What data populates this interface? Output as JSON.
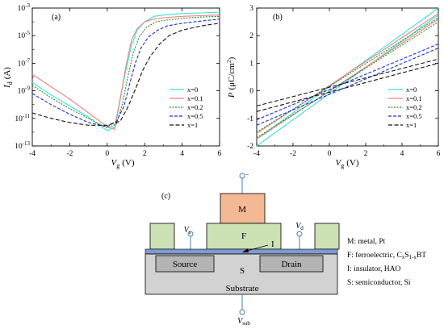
{
  "colors": {
    "x0": "#33e3e3",
    "x01": "#f08080",
    "x02": "#2e8b2e",
    "x05": "#1c2fd8",
    "x1": "#111111",
    "metal": "#f4b894",
    "ferro": "#cce2b4",
    "insulator": "#7d9ad2",
    "sd": "#b4b4b4",
    "substrate": "#d2d2d2"
  },
  "chart_data": [
    {
      "type": "line",
      "panel": "(a)",
      "xlabel_main": "V",
      "xlabel_sub": "g",
      "xlabel_unit": "(V)",
      "ylabel_main": "I",
      "ylabel_sub": "d",
      "ylabel_unit": "(A)",
      "log_y": true,
      "xlim": [
        -4,
        6
      ],
      "ylim_exp": [
        -13,
        -3
      ],
      "x_ticks": [
        "-4",
        "-2",
        "0",
        "2",
        "4",
        "6"
      ],
      "y_ticks": [
        {
          "base": "10",
          "exp": "-13"
        },
        {
          "base": "10",
          "exp": "-11"
        },
        {
          "base": "10",
          "exp": "-9"
        },
        {
          "base": "10",
          "exp": "-7"
        },
        {
          "base": "10",
          "exp": "-5"
        },
        {
          "base": "10",
          "exp": "-3"
        }
      ],
      "legend_position": "bottom-right",
      "series": [
        {
          "name": "x=0",
          "color_key": "x0",
          "dash": "",
          "x": [
            -4,
            -3,
            -2,
            -1,
            0,
            0.4,
            0.7,
            1.0,
            1.3,
            1.6,
            2.0,
            2.5,
            3,
            4,
            5,
            6
          ],
          "y": [
            -8.4,
            -9.3,
            -10.1,
            -10.9,
            -11.9,
            -11.6,
            -9.5,
            -7.5,
            -5.7,
            -4.6,
            -4.0,
            -3.6,
            -3.5,
            -3.4,
            -3.35,
            -3.3
          ]
        },
        {
          "name": "x=0.1",
          "color_key": "x01",
          "dash": "",
          "x": [
            -4,
            -3,
            -2,
            -1,
            0,
            0.4,
            0.7,
            1.0,
            1.3,
            1.6,
            2.0,
            2.5,
            3,
            4,
            5,
            6
          ],
          "y": [
            -7.8,
            -8.7,
            -9.6,
            -10.6,
            -11.6,
            -11.8,
            -9.6,
            -7.2,
            -5.3,
            -4.5,
            -4.0,
            -3.8,
            -3.7,
            -3.6,
            -3.55,
            -3.5
          ]
        },
        {
          "name": "x=0.2",
          "color_key": "x02",
          "dash": "2,1.5",
          "x": [
            -4,
            -3,
            -2,
            -1,
            0,
            0.5,
            0.8,
            1.1,
            1.4,
            1.7,
            2.1,
            2.6,
            3,
            4,
            5,
            6
          ],
          "y": [
            -8.6,
            -9.5,
            -10.3,
            -11.0,
            -11.7,
            -11.4,
            -10.0,
            -8.0,
            -6.2,
            -5.1,
            -4.4,
            -4.0,
            -3.9,
            -3.75,
            -3.65,
            -3.6
          ]
        },
        {
          "name": "x=0.5",
          "color_key": "x05",
          "dash": "4,2",
          "x": [
            -4,
            -3,
            -2,
            -1,
            0,
            0.5,
            0.9,
            1.2,
            1.5,
            1.8,
            2.2,
            2.7,
            3.2,
            4,
            5,
            6
          ],
          "y": [
            -9.2,
            -10.0,
            -10.7,
            -11.3,
            -11.6,
            -11.2,
            -10.1,
            -8.5,
            -7.0,
            -5.9,
            -5.1,
            -4.6,
            -4.3,
            -4.1,
            -3.95,
            -3.8
          ]
        },
        {
          "name": "x=1",
          "color_key": "x1",
          "dash": "5,2.5",
          "x": [
            -4,
            -3,
            -2,
            -1,
            0,
            0.7,
            1.1,
            1.5,
            1.9,
            2.3,
            2.8,
            3.3,
            4,
            5,
            6
          ],
          "y": [
            -10.6,
            -11.0,
            -11.3,
            -11.5,
            -11.5,
            -11.2,
            -10.2,
            -8.9,
            -7.5,
            -6.5,
            -5.6,
            -5.0,
            -4.6,
            -4.3,
            -4.1
          ]
        }
      ]
    },
    {
      "type": "line",
      "panel": "(b)",
      "xlabel_main": "V",
      "xlabel_sub": "g",
      "xlabel_unit": "(V)",
      "ylabel_main": "P",
      "ylabel_unit_pre": "(μC/cm",
      "ylabel_unit_sup": "2",
      "ylabel_unit_post": ")",
      "xlim": [
        -4,
        6
      ],
      "ylim": [
        -2,
        3
      ],
      "x_ticks": [
        "-4",
        "-2",
        "0",
        "2",
        "4",
        "6"
      ],
      "y_ticks": [
        "-2",
        "-1",
        "0",
        "1",
        "2",
        "3"
      ],
      "legend_position": "bottom-right",
      "series": [
        {
          "name": "x=0",
          "color_key": "x0",
          "dash": "",
          "upper": {
            "x": [
              -4,
              6
            ],
            "y": [
              -1.75,
              3.0
            ]
          },
          "lower": {
            "x": [
              -4,
              6
            ],
            "y": [
              -2.0,
              2.75
            ]
          }
        },
        {
          "name": "x=0.1",
          "color_key": "x01",
          "dash": "",
          "upper": {
            "x": [
              -4,
              6
            ],
            "y": [
              -1.55,
              2.8
            ]
          },
          "lower": {
            "x": [
              -4,
              6
            ],
            "y": [
              -1.75,
              2.6
            ]
          }
        },
        {
          "name": "x=0.2",
          "color_key": "x02",
          "dash": "2,1.5",
          "upper": {
            "x": [
              -4,
              6
            ],
            "y": [
              -1.5,
              2.65
            ]
          },
          "lower": {
            "x": [
              -4,
              6
            ],
            "y": [
              -1.7,
              2.5
            ]
          }
        },
        {
          "name": "x=0.5",
          "color_key": "x05",
          "dash": "4,2",
          "upper": {
            "x": [
              -4,
              6
            ],
            "y": [
              -1.05,
              1.7
            ]
          },
          "lower": {
            "x": [
              -4,
              6
            ],
            "y": [
              -1.25,
              1.55
            ]
          }
        },
        {
          "name": "x=1",
          "color_key": "x1",
          "dash": "5,2.5",
          "upper": {
            "x": [
              -4,
              6
            ],
            "y": [
              -0.55,
              1.15
            ]
          },
          "lower": {
            "x": [
              -4,
              6
            ],
            "y": [
              -0.75,
              1.0
            ]
          }
        }
      ]
    }
  ],
  "diagram": {
    "panel": "(c)",
    "label_m": "M",
    "label_f": "F",
    "label_i": "I",
    "label_s": "S",
    "source": "Source",
    "drain": "Drain",
    "substrate": "Substrate",
    "vs_main": "V",
    "vs_sub": "s",
    "vd_main": "V",
    "vd_sub": "d",
    "vsub_main": "V",
    "vsub_sub": "sub",
    "gate_sign": "−",
    "legend": {
      "m": "M: metal, Pt",
      "f_pre": "F: ferroelectric, C",
      "f_sub1": "x",
      "f_mid": "S",
      "f_sub2": "1-x",
      "f_post": "BT",
      "i": "I: insulator, HAO",
      "s": "S: semiconductor, Si"
    }
  }
}
